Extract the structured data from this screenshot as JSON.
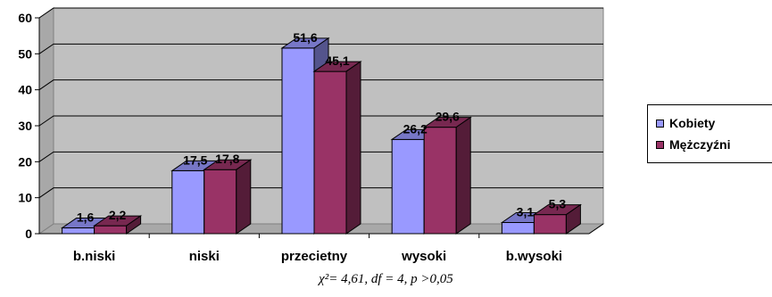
{
  "chart_data": {
    "type": "bar",
    "categories": [
      "b.niski",
      "niski",
      "przecietny",
      "wysoki",
      "b.wysoki"
    ],
    "series": [
      {
        "name": "Kobiety",
        "values": [
          1.6,
          17.5,
          51.6,
          26.2,
          3.1
        ],
        "labels": [
          "1,6",
          "17,5",
          "51,6",
          "26,2",
          "3,1"
        ],
        "color": "#9999FF"
      },
      {
        "name": "Mężczyźni",
        "values": [
          2.2,
          17.8,
          45.1,
          29.6,
          5.3
        ],
        "labels": [
          "2,2",
          "17,8",
          "45,1",
          "29,6",
          "5,3"
        ],
        "color": "#993366"
      }
    ],
    "ylim": [
      0,
      60
    ],
    "yticks": [
      0,
      10,
      20,
      30,
      40,
      50,
      60
    ],
    "title": "",
    "xlabel": "",
    "ylabel": "",
    "grid": true,
    "wall_color": "#C0C0C0",
    "legend_position": "right",
    "note": "χ²= 4,61, df = 4, p >0,05"
  }
}
